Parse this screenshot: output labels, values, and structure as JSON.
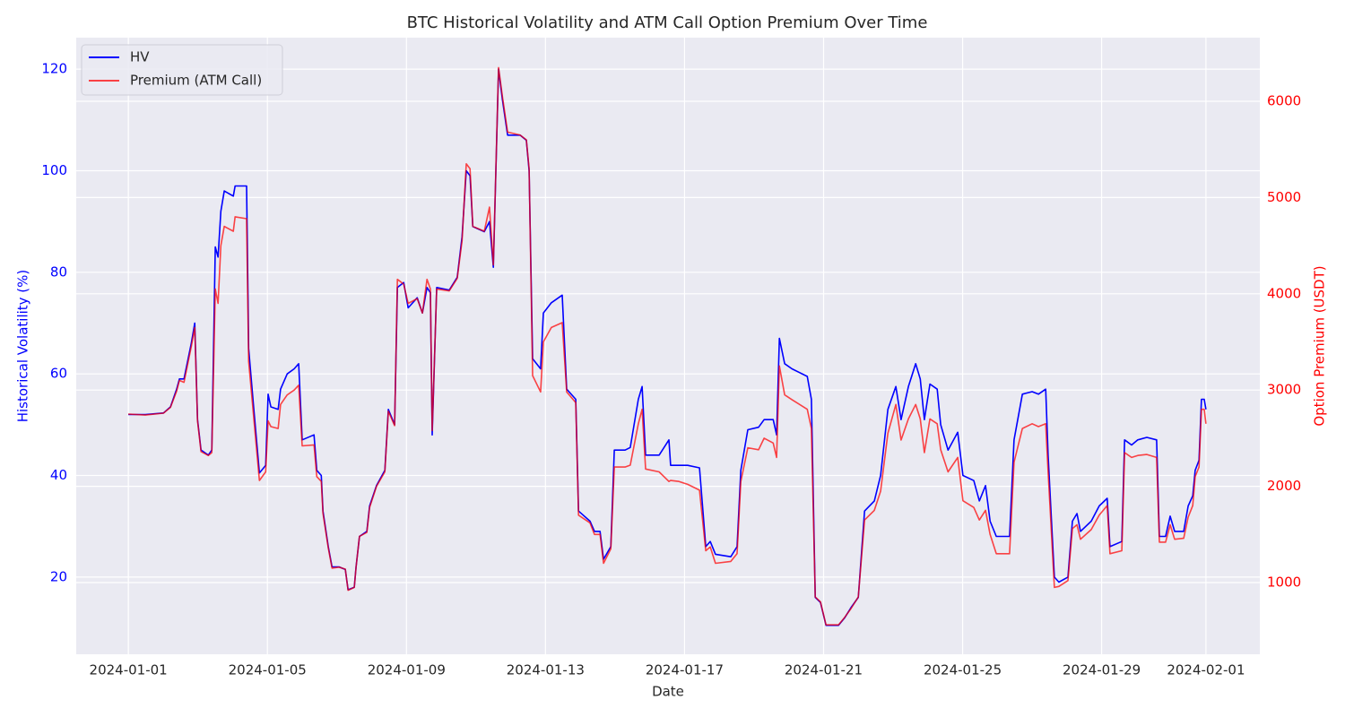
{
  "chart_data": {
    "type": "line",
    "title": "BTC Historical Volatility and ATM Call Option Premium Over Time",
    "x_label": "Date",
    "y_label": "Historical Volatility (%)",
    "y2_label": "Option Premium (USDT)",
    "x": [
      0,
      0.49,
      1.01,
      1.21,
      1.39,
      1.47,
      1.6,
      1.81,
      1.91,
      1.99,
      2.09,
      2.3,
      2.4,
      2.5,
      2.58,
      2.66,
      2.76,
      3.02,
      3.07,
      3.4,
      3.46,
      3.61,
      3.77,
      3.95,
      4.02,
      4.1,
      4.31,
      4.38,
      4.57,
      4.77,
      4.9,
      5,
      5.34,
      5.42,
      5.55,
      5.6,
      5.75,
      5.86,
      6.06,
      6.24,
      6.32,
      6.5,
      6.55,
      6.65,
      6.86,
      6.94,
      7.14,
      7.38,
      7.48,
      7.66,
      7.74,
      7.92,
      8.05,
      8.31,
      8.46,
      8.59,
      8.69,
      8.74,
      8.87,
      9.23,
      9.46,
      9.6,
      9.72,
      9.83,
      9.91,
      10.24,
      10.39,
      10.5,
      10.65,
      10.76,
      10.91,
      11.27,
      11.45,
      11.53,
      11.63,
      11.86,
      11.94,
      12.17,
      12.48,
      12.61,
      12.87,
      12.95,
      13.28,
      13.41,
      13.57,
      13.67,
      13.88,
      13.98,
      14.29,
      14.44,
      14.67,
      14.78,
      14.88,
      15.27,
      15.55,
      15.6,
      15.84,
      16.09,
      16.43,
      16.61,
      16.74,
      16.89,
      17.33,
      17.51,
      17.62,
      17.82,
      18.13,
      18.29,
      18.55,
      18.65,
      18.73,
      18.88,
      19.09,
      19.53,
      19.65,
      19.76,
      19.91,
      20.07,
      20.43,
      20.61,
      20.79,
      21,
      21.18,
      21.46,
      21.64,
      21.85,
      22.08,
      22.23,
      22.44,
      22.65,
      22.78,
      22.9,
      23.06,
      23.27,
      23.37,
      23.58,
      23.86,
      24.01,
      24.32,
      24.48,
      24.66,
      24.79,
      24.97,
      25.35,
      25.48,
      25.72,
      26,
      26.18,
      26.39,
      26.46,
      26.64,
      26.77,
      27.03,
      27.16,
      27.29,
      27.39,
      27.7,
      27.93,
      28.16,
      28.24,
      28.58,
      28.66,
      28.86,
      29.04,
      29.3,
      29.58,
      29.66,
      29.84,
      29.97,
      30.1,
      30.36,
      30.49,
      30.62,
      30.69,
      30.8,
      30.87,
      30.95,
      31
    ],
    "series": [
      {
        "name": "HV",
        "color": "#0000ff",
        "axis": "y",
        "values": [
          52,
          52,
          52.3,
          53.5,
          57,
          59,
          59,
          66,
          70,
          51,
          45,
          44,
          45,
          85,
          83,
          92,
          96,
          95,
          97,
          97,
          65,
          53,
          40.5,
          42,
          56,
          53.5,
          53,
          57,
          60,
          61,
          62,
          47,
          48,
          41,
          40,
          33,
          26,
          22,
          22,
          21.5,
          17.5,
          18,
          22,
          28,
          29,
          34,
          38,
          41,
          53,
          50,
          77,
          78,
          73,
          75,
          72,
          77,
          76,
          48,
          77,
          76.5,
          79,
          87,
          100,
          99,
          89,
          88,
          90,
          81,
          120,
          114,
          107,
          107,
          106,
          100,
          63,
          61,
          72,
          74,
          75.5,
          57,
          55,
          33,
          31,
          29,
          29,
          23.5,
          26,
          45,
          45,
          45.5,
          55,
          57.5,
          44,
          44,
          47,
          42,
          42,
          42,
          41.5,
          26,
          27,
          24.5,
          24,
          26,
          41,
          49,
          49.5,
          51,
          51,
          48,
          67,
          62,
          61,
          59.5,
          55,
          16,
          15,
          10.5,
          10.5,
          12,
          14,
          16,
          33,
          35,
          40,
          53,
          57.5,
          51,
          57.5,
          62,
          59,
          51,
          58,
          57,
          50,
          45,
          48.5,
          40,
          39,
          35,
          38,
          31,
          28,
          28,
          47,
          56,
          56.5,
          56,
          57,
          44,
          20,
          19,
          20,
          31,
          32.5,
          29,
          31,
          34,
          35.5,
          26,
          27,
          47,
          46,
          47,
          47.5,
          47,
          28,
          28,
          32,
          29,
          29,
          34,
          36,
          41,
          43,
          55,
          55,
          53
        ]
      },
      {
        "name": "Premium (ATM Call)",
        "color": "#ff0000",
        "axis": "y2",
        "values": [
          2750,
          2740,
          2760,
          2820,
          2990,
          3100,
          3080,
          3450,
          3650,
          2680,
          2360,
          2320,
          2350,
          4050,
          3900,
          4500,
          4700,
          4650,
          4800,
          4780,
          3300,
          2700,
          2060,
          2150,
          2680,
          2620,
          2600,
          2850,
          2950,
          3000,
          3050,
          2420,
          2430,
          2100,
          2050,
          1720,
          1360,
          1150,
          1160,
          1140,
          920,
          950,
          1160,
          1480,
          1520,
          1780,
          2000,
          2150,
          2780,
          2630,
          4150,
          4100,
          3900,
          3950,
          3800,
          4150,
          4050,
          2580,
          4050,
          4030,
          4160,
          4550,
          5350,
          5300,
          4700,
          4650,
          4900,
          4300,
          6350,
          6050,
          5680,
          5650,
          5600,
          5300,
          3150,
          2980,
          3500,
          3650,
          3700,
          2980,
          2870,
          1700,
          1620,
          1500,
          1500,
          1200,
          1350,
          2200,
          2200,
          2220,
          2650,
          2800,
          2180,
          2150,
          2050,
          2060,
          2050,
          2020,
          1960,
          1330,
          1370,
          1200,
          1220,
          1300,
          2050,
          2400,
          2380,
          2500,
          2450,
          2300,
          3250,
          2950,
          2900,
          2800,
          2600,
          850,
          800,
          560,
          560,
          640,
          730,
          850,
          1650,
          1750,
          1950,
          2550,
          2850,
          2480,
          2700,
          2850,
          2700,
          2350,
          2700,
          2650,
          2380,
          2150,
          2300,
          1850,
          1780,
          1650,
          1750,
          1500,
          1300,
          1300,
          2250,
          2600,
          2650,
          2620,
          2650,
          2150,
          950,
          960,
          1020,
          1560,
          1600,
          1450,
          1550,
          1700,
          1800,
          1300,
          1330,
          2350,
          2300,
          2320,
          2330,
          2300,
          1420,
          1420,
          1600,
          1450,
          1460,
          1680,
          1800,
          2100,
          2200,
          2800,
          2800,
          2650
        ]
      }
    ],
    "xlim": [
      -1.5,
      32.55
    ],
    "xticks": [
      {
        "value": 0,
        "label": "2024-01-01"
      },
      {
        "value": 4,
        "label": "2024-01-05"
      },
      {
        "value": 8,
        "label": "2024-01-09"
      },
      {
        "value": 12,
        "label": "2024-01-13"
      },
      {
        "value": 16,
        "label": "2024-01-17"
      },
      {
        "value": 20,
        "label": "2024-01-21"
      },
      {
        "value": 24,
        "label": "2024-01-25"
      },
      {
        "value": 28,
        "label": "2024-01-29"
      },
      {
        "value": 31,
        "label": "2024-02-01"
      }
    ],
    "ylim": [
      4.8,
      126.2
    ],
    "yticks": [
      20,
      40,
      60,
      80,
      100,
      120
    ],
    "y2lim": [
      255,
      6661
    ],
    "y2ticks": [
      1000,
      2000,
      3000,
      4000,
      5000,
      6000
    ],
    "grid": true,
    "legend": "upper left"
  }
}
